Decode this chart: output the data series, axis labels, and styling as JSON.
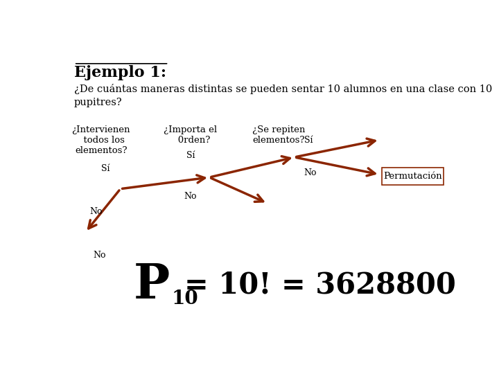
{
  "title": "Ejemplo 1:",
  "subtitle": "¿De cuántas maneras distintas se pueden sentar 10 alumnos en una clase con 10\npupitres?",
  "col1_label": "¿Intervienen\n  todos los\nelementos?",
  "col2_label": "¿Importa el\n   0rden?",
  "col3_label": "¿Se repiten\nelementos?",
  "result_label": "Permutación",
  "arrow_color": "#8B2500",
  "text_color": "#000000",
  "bg_color": "#ffffff",
  "border_color": "#888888"
}
